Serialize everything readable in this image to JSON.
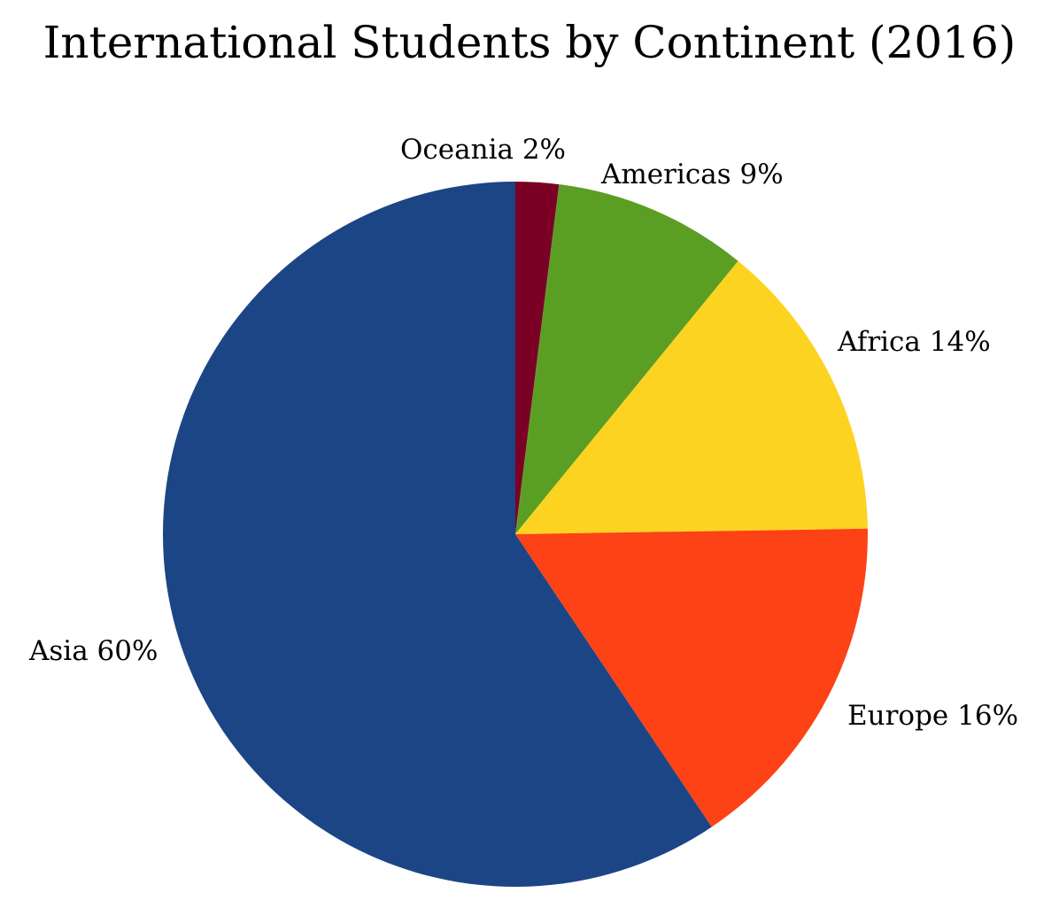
{
  "chart_data": {
    "type": "pie",
    "title": "International Students by Continent (2016)",
    "slices": [
      {
        "label": "Oceania",
        "value": 2,
        "percent_label": "2%",
        "color": "#7a0026"
      },
      {
        "label": "Americas",
        "value": 9,
        "percent_label": "9%",
        "color": "#5b9e24"
      },
      {
        "label": "Africa",
        "value": 14,
        "percent_label": "14%",
        "color": "#fdd321"
      },
      {
        "label": "Europe",
        "value": 16,
        "percent_label": "16%",
        "color": "#fd4215"
      },
      {
        "label": "Asia",
        "value": 60,
        "percent_label": "60%",
        "color": "#1c4585"
      }
    ],
    "start_angle_deg": 0,
    "direction": "clockwise"
  }
}
